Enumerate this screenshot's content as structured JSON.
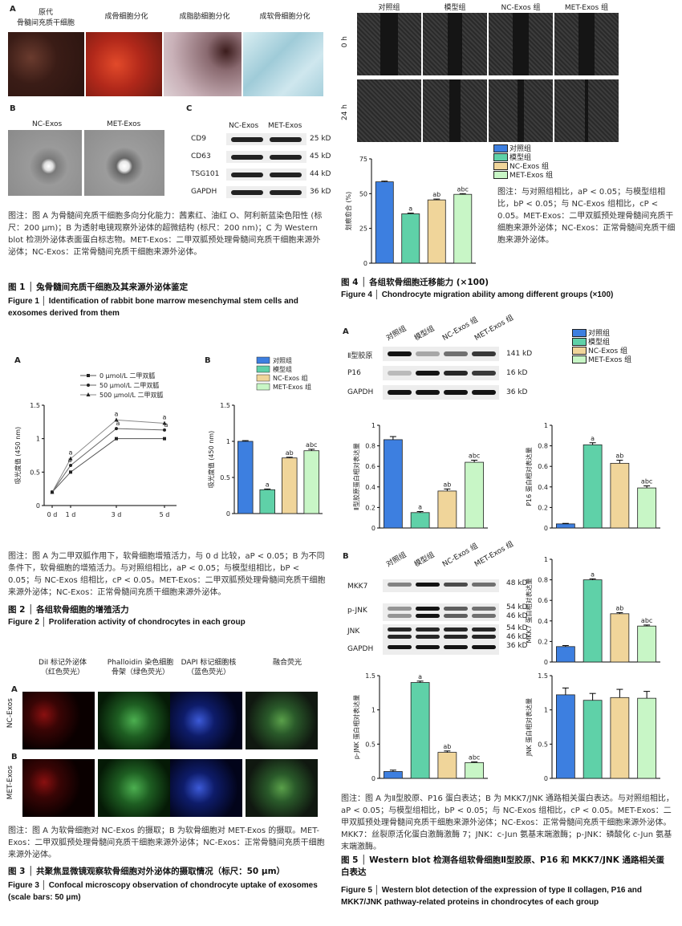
{
  "colors": {
    "ctrl": "#3d7fe0",
    "model": "#5fd1a8",
    "nc": "#f0d59a",
    "met": "#c8f6c6",
    "oil": "#c0392b",
    "stain_blue": "#7fb6c8"
  },
  "fig1": {
    "A_label": "A",
    "B_label": "B",
    "C_label": "C",
    "tiles": [
      "原代\n骨髓间充质干细胞",
      "成骨细胞分化",
      "成脂肪细胞分化",
      "成软骨细胞分化"
    ],
    "em": [
      "NC-Exos",
      "MET-Exos"
    ],
    "blot_cols": [
      "NC-Exos",
      "MET-Exos"
    ],
    "blot_rows": [
      {
        "name": "CD9",
        "kd": "25 kD"
      },
      {
        "name": "CD63",
        "kd": "45 kD"
      },
      {
        "name": "TSG101",
        "kd": "44 kD"
      },
      {
        "name": "GAPDH",
        "kd": "36 kD"
      }
    ],
    "note": "图注：图 A 为骨髓间充质干细胞多向分化能力：茜素红、油红 O、阿利新蓝染色阳性 (标尺：200 μm)；B 为透射电镜观察外泌体的超微结构 (标尺：200 nm)；C 为 Western blot 检测外泌体表面蛋白标志物。MET-Exos：二甲双胍预处理骨髓间充质干细胞来源外泌体；NC-Exos：正常骨髓间充质干细胞来源外泌体。",
    "title_cn": "图 1 │ 兔骨髓间充质干细胞及其来源外泌体鉴定",
    "title_en": "Figure 1 │ Identification of rabbit bone marrow mesenchymal stem cells and exosomes derived from them"
  },
  "fig2": {
    "A_label": "A",
    "B_label": "B",
    "legend": [
      "0 μmol/L 二甲双胍",
      "50 μmol/L 二甲双胍",
      "500 μmol/L 二甲双胍"
    ],
    "note": "图注：图 A 为二甲双胍作用下，软骨细胞增殖活力，与 0 d 比较，aP < 0.05；B 为不同条件下，软骨细胞的增殖活力。与对照组相比，aP < 0.05；与模型组相比，bP < 0.05；与 NC-Exos 组相比，cP < 0.05。MET-Exos：二甲双胍预处理骨髓间充质干细胞来源外泌体；NC-Exos：正常骨髓间充质干细胞来源外泌体。",
    "title_cn": "图 2 │ 各组软骨细胞的增殖活力",
    "title_en": "Figure 2 │ Proliferation activity of chondrocytes in each group"
  },
  "fig3": {
    "A_label": "A",
    "B_label": "B",
    "cols": [
      "DiI 标记外泌体\n（红色荧光）",
      "Phalloidin 染色细胞\n骨架（绿色荧光）",
      "DAPI 标记细胞核\n（蓝色荧光）",
      "融合荧光"
    ],
    "rows": [
      "NC-Exos",
      "MET-Exos"
    ],
    "note": "图注：图 A 为软骨细胞对 NC-Exos 的摄取；B 为软骨细胞对 MET-Exos 的摄取。MET-Exos：二甲双胍预处理骨髓间充质干细胞来源外泌体；NC-Exos：正常骨髓间充质干细胞来源外泌体。",
    "title_cn": "图 3 │ 共聚焦显微镜观察软骨细胞对外泌体的摄取情况（标尺：50 μm）",
    "title_en": "Figure 3 │ Confocal microscopy observation of chondrocyte uptake of exosomes (scale bars: 50 μm)"
  },
  "fig4": {
    "cols": [
      "对照组",
      "模型组",
      "NC-Exos 组",
      "MET-Exos 组"
    ],
    "rows": [
      "0 h",
      "24 h"
    ],
    "note": "图注：与对照组相比，aP < 0.05；与模型组相比，bP < 0.05；与 NC-Exos 组相比，cP < 0.05。MET-Exos：二甲双胍预处理骨髓间充质干细胞来源外泌体；NC-Exos：正常骨髓间充质干细胞来源外泌体。",
    "title_cn": "图 4 │ 各组软骨细胞迁移能力 (×100)",
    "title_en": "Figure 4 │ Chondrocyte migration ability among different groups (×100)"
  },
  "fig5": {
    "A_label": "A",
    "B_label": "B",
    "cols": [
      "对照组",
      "模型组",
      "NC-Exos 组",
      "MET-Exos 组"
    ],
    "blotA": [
      {
        "name": "Ⅱ型胶原",
        "kd": "141 kD"
      },
      {
        "name": "P16",
        "kd": "16 kD"
      },
      {
        "name": "GAPDH",
        "kd": "36 kD"
      }
    ],
    "blotB": [
      {
        "name": "MKK7",
        "kd": "48 kD"
      },
      {
        "name": "p-JNK",
        "kd": "54 kD\n46 kD"
      },
      {
        "name": "JNK",
        "kd": "54 kD\n46 kD"
      },
      {
        "name": "GAPDH",
        "kd": "36 kD"
      }
    ],
    "note": "图注：图 A 为Ⅱ型胶原、P16 蛋白表达；B 为 MKK7/JNK 通路相关蛋白表达。与对照组相比，aP < 0.05；与模型组相比，bP < 0.05；与 NC-Exos 组相比，cP < 0.05。MET-Exos：二甲双胍预处理骨髓间充质干细胞来源外泌体；NC-Exos：正常骨髓间充质干细胞来源外泌体。MKK7：丝裂原活化蛋白激酶激酶 7；JNK：c-Jun 氨基末端激酶；p-JNK：磷酸化 c-Jun 氨基末端激酶。",
    "title_cn": "图 5 │ Western blot 检测各组软骨细胞Ⅱ型胶原、P16 和 MKK7/JNK 通路相关蛋白表达",
    "title_en": "Figure 5 │ Western blot detection of the expression of type II collagen, P16 and MKK7/JNK pathway-related proteins in chondrocytes of each group"
  },
  "chart_data": [
    {
      "id": "fig2A",
      "type": "line",
      "x": [
        "0 d",
        "1 d",
        "3 d",
        "5 d"
      ],
      "ylabel": "吸光度值 (450 nm)",
      "ylim": [
        0,
        1.5
      ],
      "yticks": [
        0,
        0.5,
        1.0,
        1.5
      ],
      "series": [
        {
          "name": "0 μmol/L 二甲双胍",
          "values": [
            0.2,
            0.5,
            1.0,
            1.0
          ]
        },
        {
          "name": "50 μmol/L 二甲双胍",
          "values": [
            0.2,
            0.6,
            1.15,
            1.13
          ]
        },
        {
          "name": "500 μmol/L 二甲双胍",
          "values": [
            0.2,
            0.7,
            1.28,
            1.23
          ]
        }
      ],
      "annotations": [
        "a",
        "a",
        "a",
        "a",
        "a",
        "a"
      ]
    },
    {
      "id": "fig2B",
      "type": "bar",
      "categories": [
        "对照组",
        "模型组",
        "NC-Exos 组",
        "MET-Exos 组"
      ],
      "values": [
        1.0,
        0.33,
        0.77,
        0.87
      ],
      "errors": [
        0.01,
        0.01,
        0.01,
        0.02
      ],
      "sig": [
        "",
        "a",
        "ab",
        "abc"
      ],
      "ylabel": "吸光度值 (450 nm)",
      "ylim": [
        0,
        1.5
      ],
      "yticks": [
        0,
        0.5,
        1.0,
        1.5
      ]
    },
    {
      "id": "fig4",
      "type": "bar",
      "categories": [
        "对照组",
        "模型组",
        "NC-Exos 组",
        "MET-Exos 组"
      ],
      "values": [
        58.5,
        35.5,
        45.5,
        49.5
      ],
      "errors": [
        0.5,
        0.5,
        0.6,
        0.5
      ],
      "sig": [
        "",
        "a",
        "ab",
        "abc"
      ],
      "ylabel": "划痕愈合 (%)",
      "ylim": [
        0,
        75
      ],
      "yticks": [
        0,
        25,
        50,
        75
      ]
    },
    {
      "id": "fig5_col2",
      "type": "bar",
      "categories": [
        "对照组",
        "模型组",
        "NC-Exos 组",
        "MET-Exos 组"
      ],
      "values": [
        0.86,
        0.15,
        0.36,
        0.64
      ],
      "errors": [
        0.03,
        0.01,
        0.02,
        0.02
      ],
      "sig": [
        "",
        "a",
        "ab",
        "abc"
      ],
      "ylabel": "Ⅱ型胶原蛋白相对表达量",
      "ylim": [
        0,
        1.0
      ],
      "yticks": [
        0,
        0.2,
        0.4,
        0.6,
        0.8,
        1.0
      ]
    },
    {
      "id": "fig5_p16",
      "type": "bar",
      "categories": [
        "对照组",
        "模型组",
        "NC-Exos 组",
        "MET-Exos 组"
      ],
      "values": [
        0.04,
        0.81,
        0.63,
        0.39
      ],
      "errors": [
        0.005,
        0.02,
        0.03,
        0.02
      ],
      "sig": [
        "",
        "a",
        "ab",
        "abc"
      ],
      "ylabel": "P16 蛋白相对表达量",
      "ylim": [
        0,
        1.0
      ],
      "yticks": [
        0,
        0.2,
        0.4,
        0.6,
        0.8,
        1.0
      ]
    },
    {
      "id": "fig5_mkk7",
      "type": "bar",
      "categories": [
        "对照组",
        "模型组",
        "NC-Exos 组",
        "MET-Exos 组"
      ],
      "values": [
        0.15,
        0.8,
        0.47,
        0.35
      ],
      "errors": [
        0.01,
        0.01,
        0.01,
        0.01
      ],
      "sig": [
        "",
        "a",
        "ab",
        "abc"
      ],
      "ylabel": "MKK7 蛋白相对表达量",
      "ylim": [
        0,
        1.0
      ],
      "yticks": [
        0,
        0.2,
        0.4,
        0.6,
        0.8,
        1.0
      ]
    },
    {
      "id": "fig5_pjnk",
      "type": "bar",
      "categories": [
        "对照组",
        "模型组",
        "NC-Exos 组",
        "MET-Exos 组"
      ],
      "values": [
        0.1,
        1.4,
        0.38,
        0.23
      ],
      "errors": [
        0.02,
        0.02,
        0.02,
        0.01
      ],
      "sig": [
        "",
        "a",
        "ab",
        "abc"
      ],
      "ylabel": "p-JNK 蛋白相对表达量",
      "ylim": [
        0,
        1.5
      ],
      "yticks": [
        0,
        0.5,
        1.0,
        1.5
      ]
    },
    {
      "id": "fig5_jnk",
      "type": "bar",
      "categories": [
        "对照组",
        "模型组",
        "NC-Exos 组",
        "MET-Exos 组"
      ],
      "values": [
        1.22,
        1.14,
        1.18,
        1.17
      ],
      "errors": [
        0.1,
        0.1,
        0.12,
        0.1
      ],
      "sig": [
        "",
        "",
        "",
        ""
      ],
      "ylabel": "JNK 蛋白相对表达量",
      "ylim": [
        0,
        1.5
      ],
      "yticks": [
        0,
        0.5,
        1.0,
        1.5
      ]
    }
  ]
}
